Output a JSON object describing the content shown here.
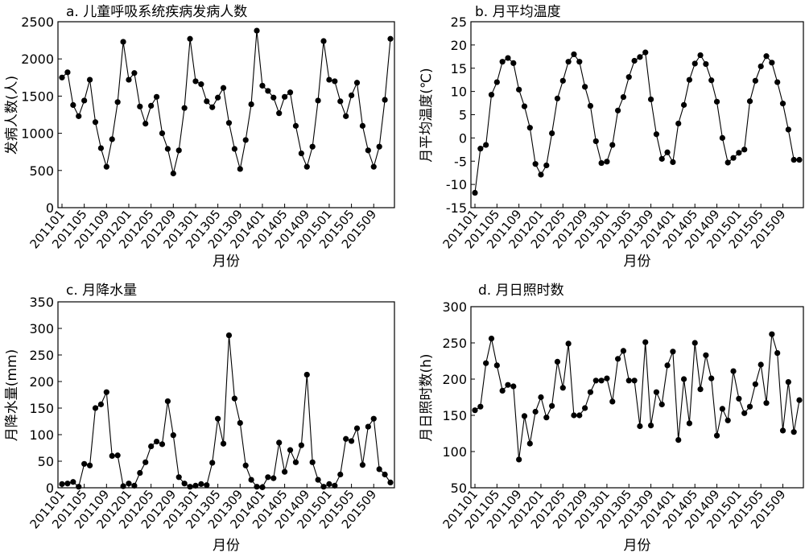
{
  "chart_data": [
    {
      "type": "line",
      "title": "a. 儿童呼吸系统疾病发病人数",
      "xlabel": "月份",
      "ylabel": "发病人数(人)",
      "ylim": [
        0,
        2500
      ],
      "yticks": [
        0,
        500,
        1000,
        1500,
        2000,
        2500
      ],
      "xticks": [
        "201101",
        "201105",
        "201109",
        "201201",
        "201205",
        "201209",
        "201301",
        "201305",
        "201309",
        "201401",
        "201405",
        "201409",
        "201501",
        "201505",
        "201509"
      ],
      "x_start": "201101",
      "x_end": "201512",
      "grid": false,
      "series": [
        {
          "values": [
            1750,
            1820,
            1380,
            1230,
            1440,
            1720,
            1150,
            800,
            550,
            920,
            1420,
            2230,
            1720,
            1810,
            1360,
            1130,
            1370,
            1490,
            1000,
            790,
            460,
            770,
            1340,
            2270,
            1700,
            1660,
            1430,
            1350,
            1480,
            1610,
            1140,
            790,
            520,
            910,
            1390,
            2380,
            1640,
            1570,
            1480,
            1270,
            1490,
            1550,
            1100,
            730,
            550,
            820,
            1440,
            2240,
            1720,
            1700,
            1430,
            1230,
            1510,
            1680,
            1100,
            770,
            550,
            820,
            1450,
            2270
          ]
        }
      ]
    },
    {
      "type": "line",
      "title": "b. 月平均温度",
      "xlabel": "月份",
      "ylabel": "月平均温度(℃)",
      "ylim": [
        -15,
        25
      ],
      "yticks": [
        -15,
        -10,
        -5,
        0,
        5,
        10,
        15,
        20,
        25
      ],
      "xticks": [
        "201101",
        "201105",
        "201109",
        "201201",
        "201205",
        "201209",
        "201301",
        "201305",
        "201309",
        "201401",
        "201405",
        "201409",
        "201501",
        "201505",
        "201509"
      ],
      "x_start": "201101",
      "x_end": "201512",
      "grid": false,
      "series": [
        {
          "values": [
            -11.8,
            -2.3,
            -1.5,
            9.3,
            12.0,
            16.4,
            17.2,
            16.1,
            10.4,
            6.8,
            2.2,
            -5.6,
            -7.9,
            -5.9,
            1.0,
            8.5,
            12.3,
            16.4,
            18.0,
            16.4,
            11.0,
            6.9,
            -0.7,
            -5.4,
            -5.1,
            -1.5,
            5.9,
            8.8,
            13.1,
            16.6,
            17.4,
            18.4,
            8.3,
            0.8,
            -4.5,
            -3.1,
            -5.2,
            3.1,
            7.1,
            12.5,
            16.0,
            17.8,
            15.9,
            12.4,
            7.8,
            0.0,
            -5.3,
            -4.3,
            -3.2,
            -2.5,
            7.9,
            12.3,
            15.4,
            17.6,
            16.2,
            12.0,
            7.4,
            1.8,
            -4.7,
            -4.7
          ]
        }
      ]
    },
    {
      "type": "line",
      "title": "c. 月降水量",
      "xlabel": "月份",
      "ylabel": "月降水量(mm)",
      "ylim": [
        0,
        350
      ],
      "yticks": [
        0,
        50,
        100,
        150,
        200,
        250,
        300,
        350
      ],
      "xticks": [
        "201101",
        "201105",
        "201109",
        "201201",
        "201205",
        "201209",
        "201301",
        "201305",
        "201309",
        "201401",
        "201405",
        "201409",
        "201501",
        "201505",
        "201509"
      ],
      "x_start": "201101",
      "x_end": "201512",
      "grid": false,
      "series": [
        {
          "values": [
            7,
            8,
            11,
            2,
            45,
            42,
            150,
            157,
            180,
            60,
            61,
            3,
            8,
            4,
            28,
            48,
            78,
            87,
            82,
            163,
            99,
            20,
            8,
            2,
            4,
            7,
            5,
            47,
            130,
            83,
            287,
            168,
            122,
            42,
            15,
            2,
            1,
            20,
            18,
            85,
            30,
            71,
            48,
            80,
            213,
            48,
            15,
            2,
            7,
            4,
            25,
            92,
            88,
            112,
            43,
            115,
            130,
            35,
            25,
            10
          ]
        }
      ]
    },
    {
      "type": "line",
      "title": "d. 月日照时数",
      "xlabel": "月份",
      "ylabel": "月日照时数(h)",
      "ylim": [
        50,
        300
      ],
      "yticks": [
        50,
        100,
        150,
        200,
        250,
        300
      ],
      "xticks": [
        "201101",
        "201105",
        "201109",
        "201201",
        "201205",
        "201209",
        "201301",
        "201305",
        "201309",
        "201401",
        "201405",
        "201409",
        "201501",
        "201505",
        "201509"
      ],
      "x_start": "201101",
      "x_end": "201512",
      "grid": false,
      "series": [
        {
          "values": [
            157,
            162,
            222,
            256,
            219,
            184,
            192,
            190,
            89,
            149,
            111,
            155,
            175,
            147,
            163,
            224,
            188,
            249,
            150,
            150,
            160,
            182,
            198,
            198,
            201,
            169,
            228,
            239,
            198,
            198,
            135,
            251,
            136,
            182,
            165,
            219,
            238,
            116,
            200,
            139,
            250,
            186,
            233,
            201,
            122,
            159,
            143,
            211,
            173,
            153,
            162,
            193,
            220,
            167,
            262,
            236,
            129,
            196,
            127,
            171
          ]
        }
      ]
    }
  ]
}
